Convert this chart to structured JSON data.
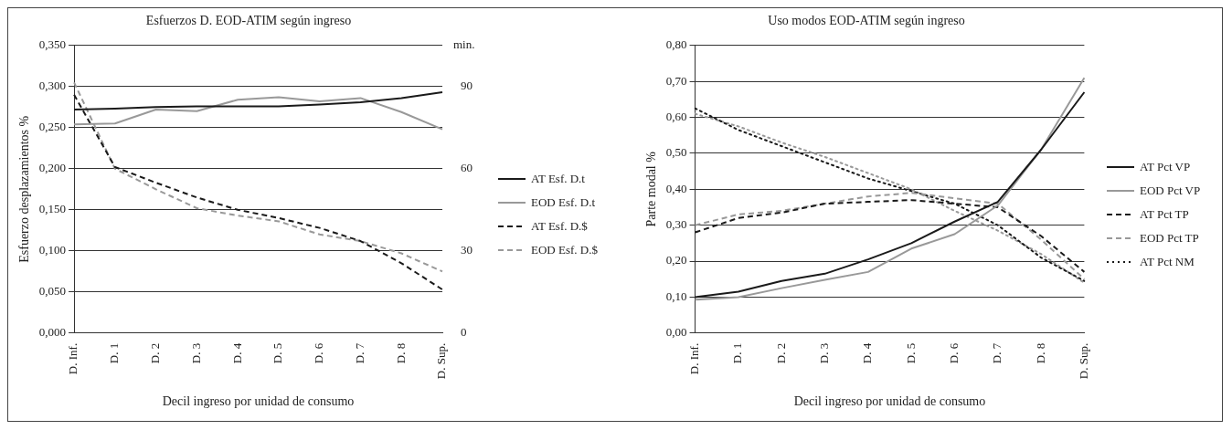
{
  "chart_data": [
    {
      "type": "line",
      "title": "Esfuerzos D. EOD-ATIM según ingreso",
      "xlabel": "Decil ingreso por unidad de consumo",
      "ylabel": "Esfuerzo desplazamientos %",
      "y2label": "min.",
      "categories": [
        "D. Inf.",
        "D. 1",
        "D. 2",
        "D. 3",
        "D. 4",
        "D. 5",
        "D. 6",
        "D. 7",
        "D. 8",
        "D. Sup."
      ],
      "ylim": [
        0,
        0.35
      ],
      "yticks": [
        {
          "value": 0,
          "label": "0,000"
        },
        {
          "value": 0.05,
          "label": "0,050"
        },
        {
          "value": 0.1,
          "label": "0,100"
        },
        {
          "value": 0.15,
          "label": "0,150"
        },
        {
          "value": 0.2,
          "label": "0,200"
        },
        {
          "value": 0.25,
          "label": "0,250"
        },
        {
          "value": 0.3,
          "label": "0,300"
        },
        {
          "value": 0.35,
          "label": "0,350"
        }
      ],
      "y2lim": [
        0,
        105
      ],
      "y2ticks": [
        0,
        30,
        60,
        90
      ],
      "grid": "y",
      "legend": "right",
      "series": [
        {
          "name": "AT Esf. D.t",
          "color": "#1a1a1a",
          "line_style": "solid",
          "values": [
            0.272,
            0.273,
            0.275,
            0.276,
            0.276,
            0.276,
            0.278,
            0.281,
            0.286,
            0.293
          ]
        },
        {
          "name": "EOD Esf. D.t",
          "color": "#999999",
          "line_style": "solid",
          "values": [
            0.254,
            0.255,
            0.272,
            0.27,
            0.284,
            0.287,
            0.282,
            0.286,
            0.269,
            0.248
          ]
        },
        {
          "name": "AT Esf. D.$",
          "color": "#1a1a1a",
          "line_style": "dashed",
          "values": [
            0.29,
            0.202,
            0.183,
            0.165,
            0.15,
            0.14,
            0.128,
            0.112,
            0.085,
            0.053
          ]
        },
        {
          "name": "EOD Esf. D.$",
          "color": "#999999",
          "line_style": "dashed",
          "values": [
            0.305,
            0.2,
            0.175,
            0.152,
            0.143,
            0.136,
            0.12,
            0.112,
            0.097,
            0.075
          ]
        }
      ]
    },
    {
      "type": "line",
      "title": "Uso modos EOD-ATIM según ingreso",
      "xlabel": "Decil ingreso por unidad de consumo",
      "ylabel": "Parte modal %",
      "categories": [
        "D. Inf.",
        "D. 1",
        "D. 2",
        "D. 3",
        "D. 4",
        "D. 5",
        "D. 6",
        "D. 7",
        "D. 8",
        "D. Sup."
      ],
      "ylim": [
        0,
        0.8
      ],
      "yticks": [
        {
          "value": 0,
          "label": "0,00"
        },
        {
          "value": 0.1,
          "label": "0,10"
        },
        {
          "value": 0.2,
          "label": "0,20"
        },
        {
          "value": 0.3,
          "label": "0,30"
        },
        {
          "value": 0.4,
          "label": "0,40"
        },
        {
          "value": 0.5,
          "label": "0,50"
        },
        {
          "value": 0.6,
          "label": "0,60"
        },
        {
          "value": 0.7,
          "label": "0,70"
        },
        {
          "value": 0.8,
          "label": "0,80"
        }
      ],
      "grid": "y",
      "legend": "right",
      "series": [
        {
          "name": "AT Pct VP",
          "color": "#1a1a1a",
          "line_style": "solid",
          "values": [
            0.1,
            0.115,
            0.145,
            0.165,
            0.205,
            0.25,
            0.31,
            0.365,
            0.51,
            0.67
          ]
        },
        {
          "name": "EOD Pct VP",
          "color": "#999999",
          "line_style": "solid",
          "values": [
            0.093,
            0.1,
            0.125,
            0.148,
            0.17,
            0.235,
            0.275,
            0.355,
            0.51,
            0.71
          ]
        },
        {
          "name": "AT Pct TP",
          "color": "#1a1a1a",
          "line_style": "dashed",
          "values": [
            0.28,
            0.32,
            0.335,
            0.36,
            0.365,
            0.37,
            0.36,
            0.35,
            0.27,
            0.17
          ]
        },
        {
          "name": "EOD Pct TP",
          "color": "#999999",
          "line_style": "dashed",
          "values": [
            0.3,
            0.33,
            0.34,
            0.36,
            0.38,
            0.39,
            0.375,
            0.36,
            0.26,
            0.15
          ]
        },
        {
          "name": "AT Pct NM",
          "color": "#1a1a1a",
          "line_style": "dotted",
          "values": [
            0.625,
            0.565,
            0.52,
            0.475,
            0.43,
            0.395,
            0.36,
            0.3,
            0.21,
            0.145
          ]
        },
        {
          "color": "#999999",
          "line_style": "dotted",
          "values": [
            0.61,
            0.575,
            0.53,
            0.49,
            0.445,
            0.4,
            0.34,
            0.285,
            0.22,
            0.14
          ]
        }
      ]
    }
  ]
}
